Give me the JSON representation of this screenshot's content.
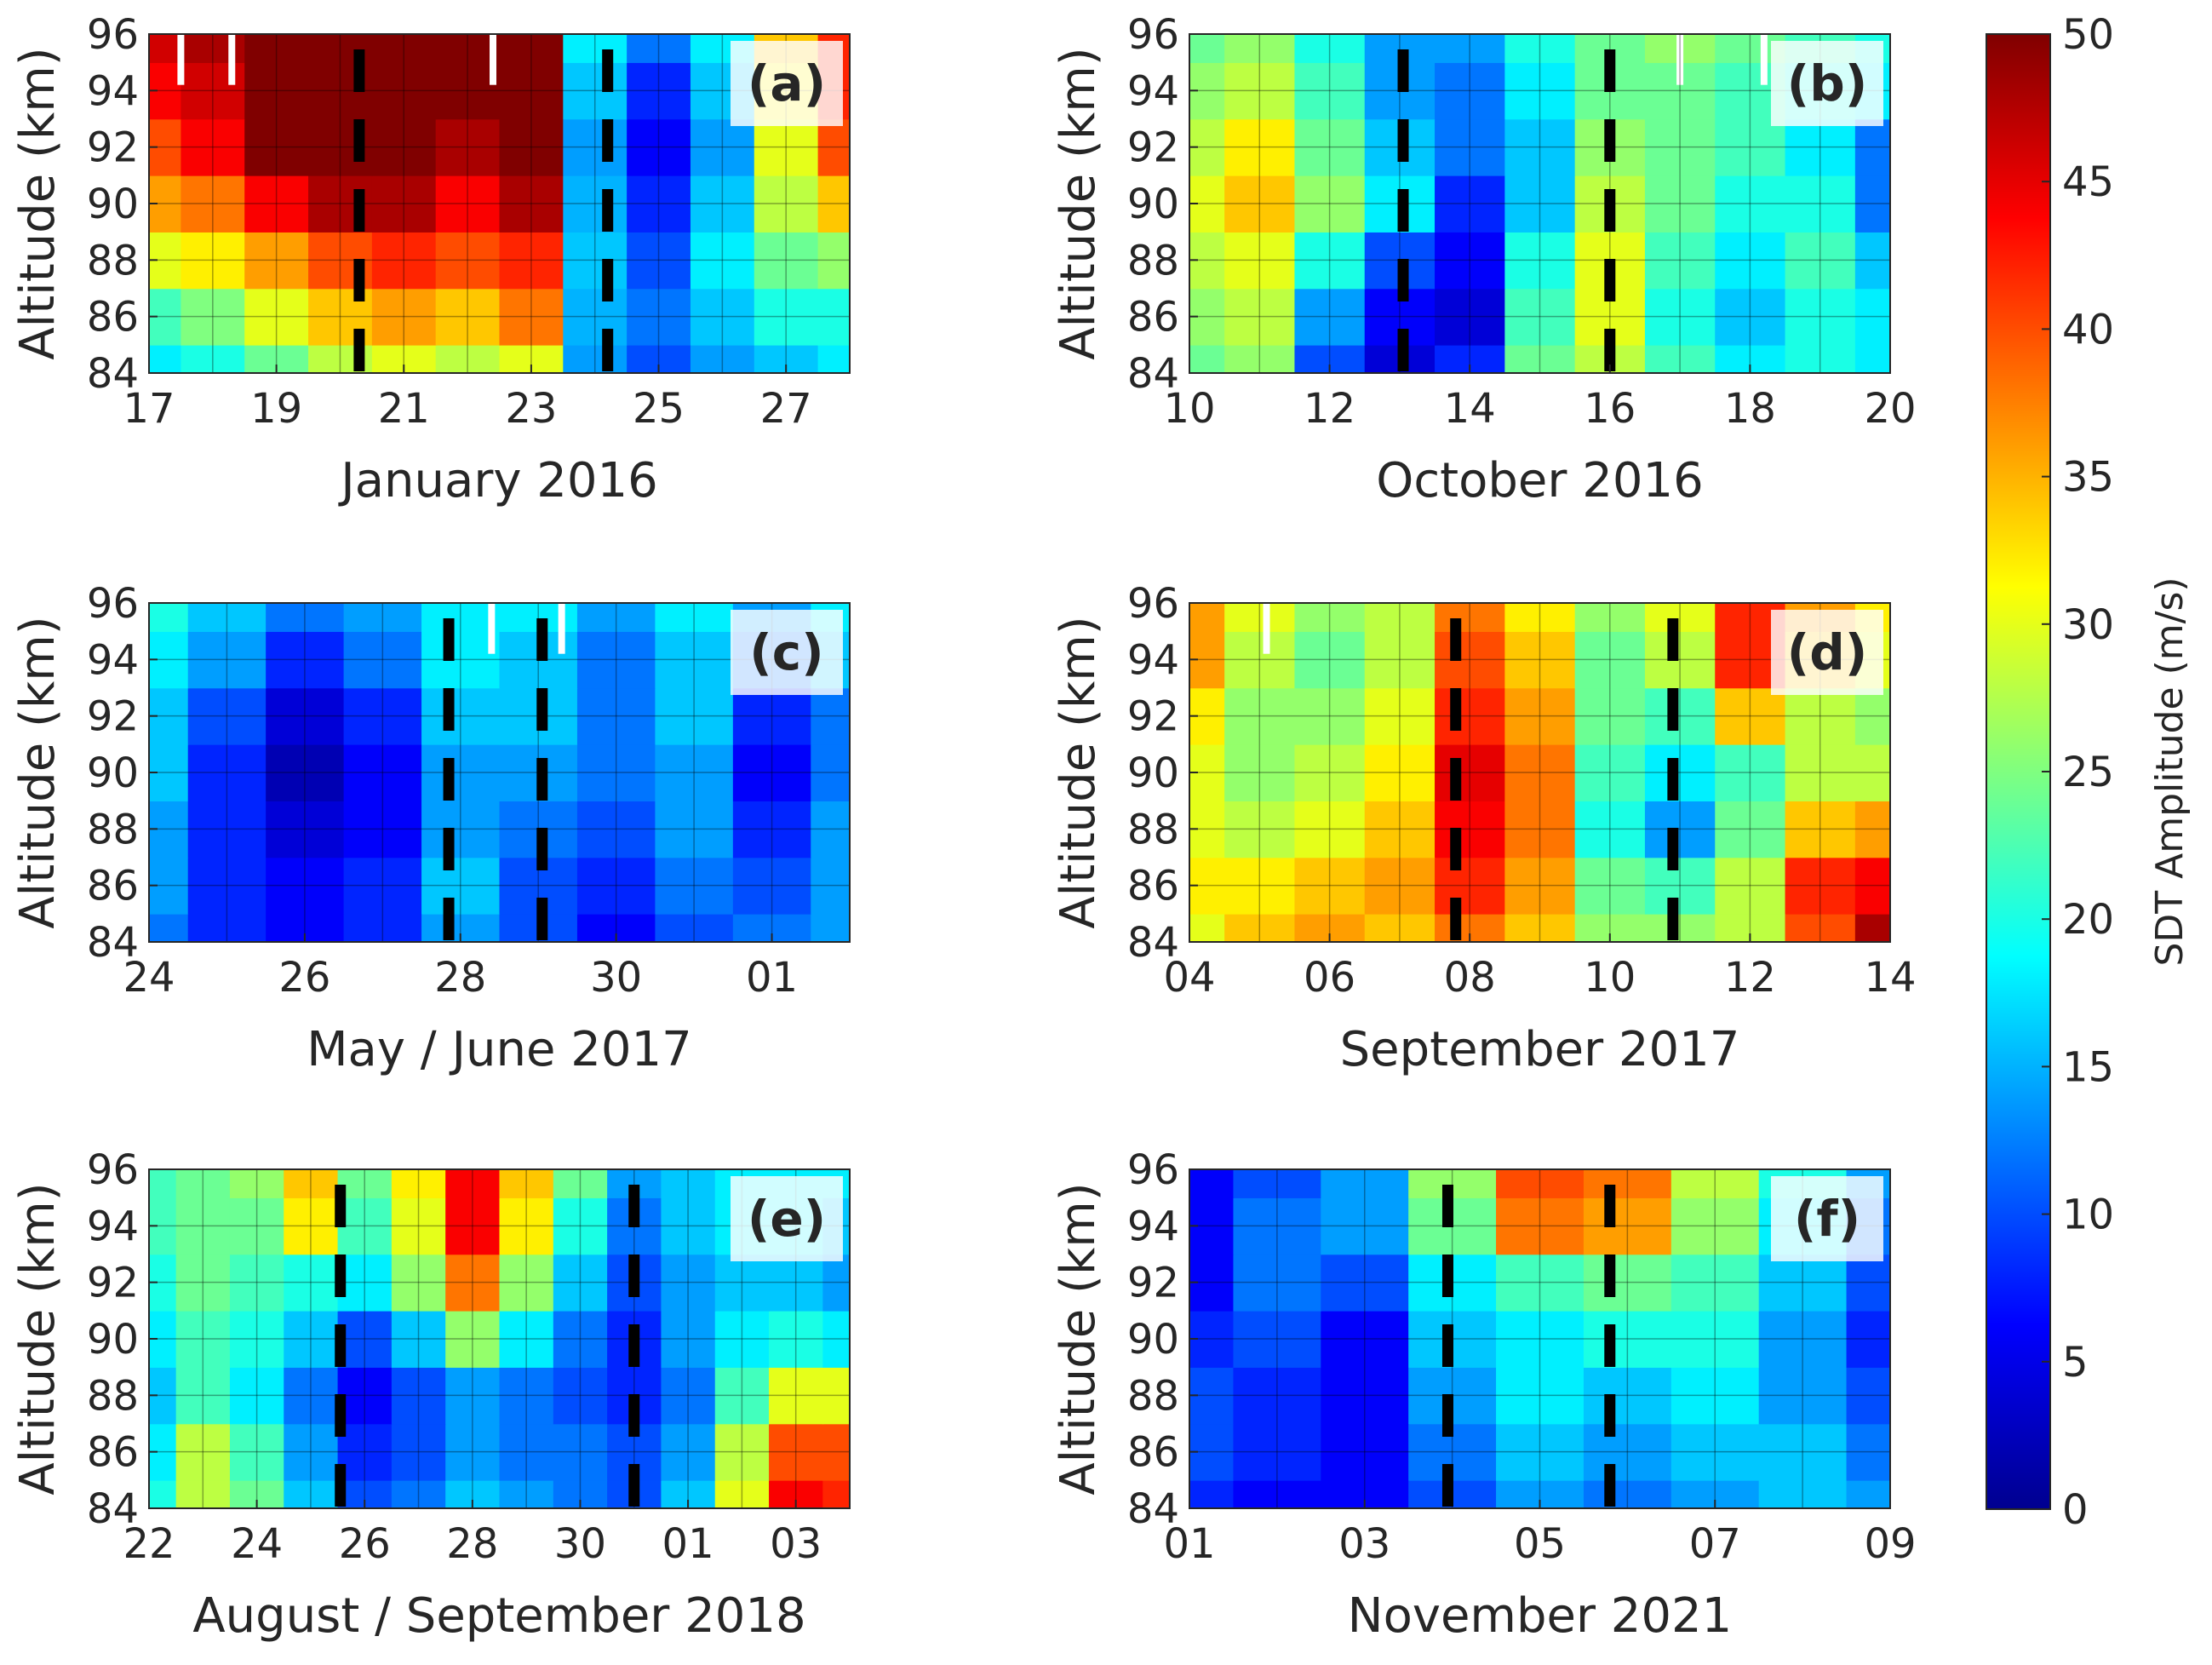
{
  "chart_data": [
    {
      "type": "heatmap",
      "panel_label": "(a)",
      "xlabel": "January 2016",
      "ylabel": "Altitude (km)",
      "x_ticks": [
        "17",
        "19",
        "21",
        "23",
        "25",
        "27"
      ],
      "y_ticks": [
        "84",
        "86",
        "88",
        "90",
        "92",
        "94",
        "96"
      ],
      "xlim": [
        17,
        28
      ],
      "ylim": [
        84,
        96
      ],
      "event_lines_x": [
        20.3,
        24.2
      ],
      "data_gaps_x": [
        17.5,
        18.3,
        22.4
      ],
      "amplitude_grid": {
        "x": [
          17,
          18,
          19,
          20,
          21,
          22,
          23,
          24,
          25,
          26,
          27,
          28
        ],
        "altitude": [
          84,
          86,
          88,
          90,
          92,
          94,
          96
        ],
        "values": [
          [
            18,
            20,
            24,
            28,
            30,
            28,
            30,
            14,
            10,
            14,
            16,
            18
          ],
          [
            22,
            25,
            30,
            34,
            36,
            34,
            38,
            15,
            12,
            16,
            20,
            20
          ],
          [
            30,
            32,
            36,
            40,
            42,
            40,
            42,
            16,
            10,
            18,
            24,
            26
          ],
          [
            36,
            38,
            44,
            48,
            48,
            44,
            48,
            15,
            8,
            16,
            28,
            34
          ],
          [
            40,
            44,
            50,
            50,
            50,
            48,
            50,
            14,
            6,
            14,
            30,
            40
          ],
          [
            44,
            46,
            50,
            50,
            50,
            50,
            50,
            16,
            8,
            16,
            32,
            42
          ],
          [
            46,
            48,
            50,
            50,
            50,
            50,
            50,
            18,
            12,
            18,
            34,
            42
          ]
        ]
      }
    },
    {
      "type": "heatmap",
      "panel_label": "(b)",
      "xlabel": "October 2016",
      "ylabel": "Altitude (km)",
      "x_ticks": [
        "10",
        "12",
        "14",
        "16",
        "18",
        "20"
      ],
      "y_ticks": [
        "84",
        "86",
        "88",
        "90",
        "92",
        "94",
        "96"
      ],
      "xlim": [
        10,
        20
      ],
      "ylim": [
        84,
        96
      ],
      "event_lines_x": [
        13.05,
        16.0
      ],
      "data_gaps_x": [
        17.0,
        18.2
      ],
      "amplitude_grid": {
        "x": [
          10,
          11,
          12,
          13,
          14,
          15,
          16,
          17,
          18,
          19,
          20
        ],
        "altitude": [
          84,
          86,
          88,
          90,
          92,
          94,
          96
        ],
        "values": [
          [
            24,
            26,
            10,
            4,
            8,
            24,
            28,
            22,
            18,
            20,
            18
          ],
          [
            26,
            28,
            14,
            6,
            4,
            22,
            30,
            20,
            16,
            20,
            18
          ],
          [
            28,
            30,
            20,
            10,
            6,
            20,
            30,
            22,
            18,
            22,
            16
          ],
          [
            30,
            34,
            26,
            18,
            8,
            16,
            28,
            24,
            20,
            20,
            12
          ],
          [
            28,
            32,
            24,
            16,
            12,
            16,
            26,
            24,
            22,
            18,
            12
          ],
          [
            26,
            28,
            22,
            14,
            12,
            18,
            24,
            24,
            22,
            20,
            18
          ],
          [
            24,
            26,
            20,
            14,
            14,
            20,
            24,
            26,
            24,
            22,
            20
          ]
        ]
      }
    },
    {
      "type": "heatmap",
      "panel_label": "(c)",
      "xlabel": "May / June 2017",
      "ylabel": "Altitude (km)",
      "x_ticks": [
        "24",
        "26",
        "28",
        "30",
        "01"
      ],
      "y_ticks": [
        "84",
        "86",
        "88",
        "90",
        "92",
        "94",
        "96"
      ],
      "xlim": [
        24,
        33
      ],
      "ylim": [
        84,
        96
      ],
      "event_lines_x": [
        27.85,
        29.05
      ],
      "data_gaps_x": [
        28.4,
        29.3
      ],
      "amplitude_grid": {
        "x": [
          24,
          25,
          26,
          27,
          28,
          29,
          30,
          31,
          32,
          33
        ],
        "altitude": [
          84,
          86,
          88,
          90,
          92,
          94,
          96
        ],
        "values": [
          [
            12,
            8,
            6,
            8,
            14,
            10,
            6,
            10,
            12,
            14
          ],
          [
            14,
            8,
            6,
            8,
            16,
            10,
            8,
            12,
            10,
            14
          ],
          [
            14,
            8,
            4,
            6,
            14,
            12,
            10,
            14,
            8,
            14
          ],
          [
            16,
            8,
            2,
            6,
            14,
            14,
            12,
            14,
            6,
            12
          ],
          [
            16,
            10,
            4,
            8,
            16,
            16,
            12,
            16,
            8,
            12
          ],
          [
            18,
            14,
            8,
            12,
            18,
            16,
            12,
            16,
            12,
            16
          ],
          [
            20,
            16,
            12,
            14,
            18,
            18,
            14,
            18,
            14,
            18
          ]
        ]
      }
    },
    {
      "type": "heatmap",
      "panel_label": "(d)",
      "xlabel": "September 2017",
      "ylabel": "Altitude (km)",
      "x_ticks": [
        "04",
        "06",
        "08",
        "10",
        "12",
        "14"
      ],
      "y_ticks": [
        "84",
        "86",
        "88",
        "90",
        "92",
        "94",
        "96"
      ],
      "xlim": [
        4,
        14
      ],
      "ylim": [
        84,
        96
      ],
      "event_lines_x": [
        7.8,
        10.9
      ],
      "data_gaps_x": [
        5.1
      ],
      "amplitude_grid": {
        "x": [
          4,
          5,
          6,
          7,
          8,
          9,
          10,
          11,
          12,
          13,
          14
        ],
        "altitude": [
          84,
          86,
          88,
          90,
          92,
          94,
          96
        ],
        "values": [
          [
            30,
            34,
            36,
            34,
            38,
            34,
            26,
            26,
            28,
            40,
            48
          ],
          [
            32,
            32,
            34,
            36,
            42,
            36,
            24,
            22,
            28,
            42,
            44
          ],
          [
            30,
            28,
            30,
            34,
            44,
            38,
            20,
            14,
            24,
            34,
            36
          ],
          [
            30,
            26,
            28,
            32,
            45,
            38,
            22,
            18,
            22,
            28,
            28
          ],
          [
            32,
            26,
            26,
            30,
            42,
            36,
            24,
            22,
            34,
            28,
            26
          ],
          [
            36,
            28,
            24,
            28,
            40,
            34,
            24,
            28,
            42,
            34,
            30
          ],
          [
            36,
            30,
            26,
            28,
            38,
            32,
            26,
            30,
            42,
            36,
            32
          ]
        ]
      }
    },
    {
      "type": "heatmap",
      "panel_label": "(e)",
      "xlabel": "August / September 2018",
      "ylabel": "Altitude (km)",
      "x_ticks": [
        "22",
        "24",
        "26",
        "28",
        "30",
        "01",
        "03"
      ],
      "y_ticks": [
        "84",
        "86",
        "88",
        "90",
        "92",
        "94",
        "96"
      ],
      "xlim": [
        22,
        35
      ],
      "ylim": [
        84,
        96
      ],
      "event_lines_x": [
        25.55,
        31.0
      ],
      "data_gaps_x": [],
      "amplitude_grid": {
        "x": [
          22,
          23,
          24,
          25,
          26,
          27,
          28,
          29,
          30,
          31,
          32,
          33,
          34,
          35
        ],
        "altitude": [
          84,
          86,
          88,
          90,
          92,
          94,
          96
        ],
        "values": [
          [
            20,
            28,
            24,
            16,
            10,
            12,
            16,
            14,
            12,
            10,
            16,
            30,
            44,
            42
          ],
          [
            18,
            28,
            22,
            14,
            8,
            10,
            14,
            12,
            12,
            10,
            14,
            28,
            40,
            40
          ],
          [
            16,
            22,
            18,
            12,
            6,
            10,
            14,
            12,
            10,
            8,
            12,
            22,
            30,
            30
          ],
          [
            18,
            22,
            20,
            16,
            10,
            16,
            26,
            18,
            12,
            8,
            14,
            18,
            20,
            18
          ],
          [
            20,
            24,
            22,
            20,
            18,
            26,
            38,
            26,
            16,
            10,
            14,
            16,
            16,
            14
          ],
          [
            22,
            24,
            24,
            32,
            22,
            30,
            44,
            32,
            20,
            12,
            16,
            18,
            18,
            16
          ],
          [
            22,
            24,
            26,
            34,
            24,
            32,
            44,
            34,
            24,
            14,
            16,
            18,
            18,
            18
          ]
        ]
      }
    },
    {
      "type": "heatmap",
      "panel_label": "(f)",
      "xlabel": "November 2021",
      "ylabel": "Altitude (km)",
      "x_ticks": [
        "01",
        "03",
        "05",
        "07",
        "09"
      ],
      "y_ticks": [
        "84",
        "86",
        "88",
        "90",
        "92",
        "94",
        "96"
      ],
      "xlim": [
        1,
        9
      ],
      "ylim": [
        84,
        96
      ],
      "event_lines_x": [
        3.95,
        5.8
      ],
      "data_gaps_x": [],
      "amplitude_grid": {
        "x": [
          1,
          2,
          3,
          4,
          5,
          6,
          7,
          8,
          9
        ],
        "altitude": [
          84,
          86,
          88,
          90,
          92,
          94,
          96
        ],
        "values": [
          [
            8,
            6,
            6,
            10,
            14,
            12,
            14,
            16,
            14
          ],
          [
            10,
            8,
            6,
            12,
            16,
            14,
            16,
            16,
            12
          ],
          [
            10,
            8,
            6,
            14,
            18,
            16,
            18,
            14,
            10
          ],
          [
            8,
            10,
            6,
            16,
            18,
            20,
            20,
            14,
            8
          ],
          [
            6,
            12,
            10,
            18,
            22,
            24,
            22,
            16,
            10
          ],
          [
            6,
            12,
            14,
            24,
            38,
            36,
            26,
            18,
            12
          ],
          [
            6,
            10,
            14,
            26,
            40,
            38,
            28,
            20,
            14
          ]
        ]
      }
    }
  ],
  "colorbar": {
    "label": "SDT Amplitude (m/s)",
    "ticks": [
      "0",
      "5",
      "10",
      "15",
      "20",
      "25",
      "30",
      "35",
      "40",
      "45",
      "50"
    ],
    "range": [
      0,
      50
    ],
    "colormap": "jet"
  }
}
